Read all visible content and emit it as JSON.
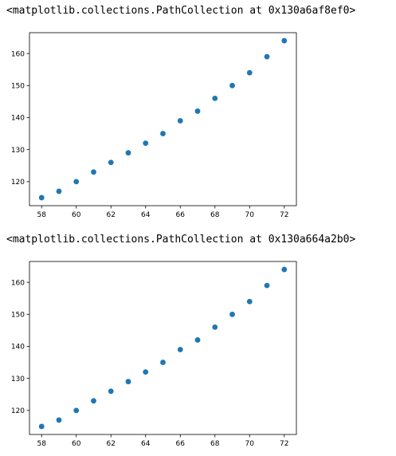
{
  "outputs": [
    {
      "repr": "<matplotlib.collections.PathCollection at 0x130a6af8ef0>"
    },
    {
      "repr": "<matplotlib.collections.PathCollection at 0x130a664a2b0>"
    }
  ],
  "colors": {
    "marker": "#1f77b4",
    "axes": "#000000",
    "background": "#ffffff"
  },
  "chart_data": [
    {
      "type": "scatter",
      "title": "",
      "xlabel": "",
      "ylabel": "",
      "x": [
        58,
        59,
        60,
        61,
        62,
        63,
        64,
        65,
        66,
        67,
        68,
        69,
        70,
        71,
        72
      ],
      "y": [
        115,
        117,
        120,
        123,
        126,
        129,
        132,
        135,
        139,
        142,
        146,
        150,
        154,
        159,
        164
      ],
      "xlim": [
        57.3,
        72.7
      ],
      "ylim": [
        112.5,
        166.5
      ],
      "xticks": [
        58,
        60,
        62,
        64,
        66,
        68,
        70,
        72
      ],
      "yticks": [
        120,
        130,
        140,
        150,
        160
      ],
      "grid": false
    },
    {
      "type": "scatter",
      "title": "",
      "xlabel": "",
      "ylabel": "",
      "x": [
        58,
        59,
        60,
        61,
        62,
        63,
        64,
        65,
        66,
        67,
        68,
        69,
        70,
        71,
        72
      ],
      "y": [
        115,
        117,
        120,
        123,
        126,
        129,
        132,
        135,
        139,
        142,
        146,
        150,
        154,
        159,
        164
      ],
      "xlim": [
        57.3,
        72.7
      ],
      "ylim": [
        112.5,
        166.5
      ],
      "xticks": [
        58,
        60,
        62,
        64,
        66,
        68,
        70,
        72
      ],
      "yticks": [
        120,
        130,
        140,
        150,
        160
      ],
      "grid": false
    }
  ]
}
